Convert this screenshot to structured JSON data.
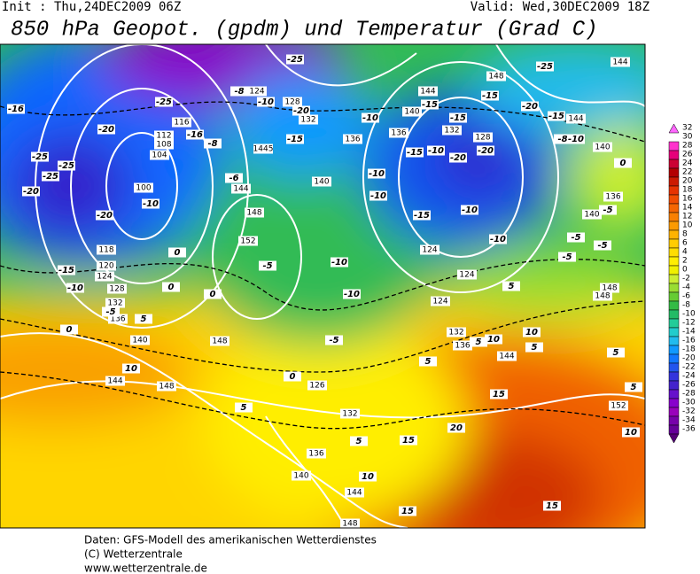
{
  "header": {
    "init": "Init : Thu,24DEC2009 06Z",
    "valid": "Valid: Wed,30DEC2009 18Z",
    "title": "850 hPa Geopot. (gpdm) und Temperatur (Grad C)"
  },
  "map": {
    "geopotential_labels": [
      "124",
      "128",
      "132",
      "116",
      "112",
      "108",
      "104",
      "100",
      "1445",
      "144",
      "148",
      "152",
      "140",
      "136",
      "136",
      "140",
      "144",
      "148",
      "144",
      "132",
      "128",
      "144",
      "140",
      "136",
      "140",
      "148",
      "148",
      "124",
      "124",
      "124",
      "132",
      "136",
      "144",
      "152",
      "118",
      "120",
      "124",
      "128",
      "132",
      "136",
      "140",
      "144",
      "148",
      "148",
      "126",
      "132",
      "136",
      "140",
      "144",
      "148"
    ],
    "temperature_labels": [
      "-16",
      "-25",
      "-16",
      "-8",
      "-10",
      "-8",
      "-25",
      "-20",
      "-15",
      "-10",
      "-15",
      "-15",
      "-15",
      "-20",
      "-25",
      "-15",
      "-8",
      "-10",
      "-15",
      "-10",
      "-20",
      "-20",
      "-10",
      "-10",
      "-15",
      "-10",
      "-10",
      "-5",
      "-5",
      "-5",
      "0",
      "-5",
      "-20",
      "-25",
      "-25",
      "-20",
      "-25",
      "-20",
      "-10",
      "-15",
      "-10",
      "-5",
      "0",
      "-6",
      "0",
      "0",
      "0",
      "-5",
      "-10",
      "-10",
      "-5",
      "0",
      "5",
      "5",
      "10",
      "10",
      "5",
      "5",
      "15",
      "20",
      "15",
      "10",
      "15",
      "5",
      "5",
      "10",
      "5",
      "10",
      "5",
      "5",
      "15"
    ]
  },
  "colorbar": {
    "labels": [
      32,
      30,
      28,
      26,
      24,
      22,
      20,
      18,
      16,
      14,
      12,
      10,
      8,
      6,
      4,
      2,
      0,
      -2,
      -4,
      -6,
      -8,
      -10,
      -12,
      -14,
      -16,
      -18,
      -20,
      -22,
      -24,
      -26,
      -28,
      -30,
      -32,
      -34,
      -36
    ],
    "colors": [
      "#ff66ff",
      "#ff33cc",
      "#e6007a",
      "#cc0033",
      "#b30000",
      "#cc1a00",
      "#e63300",
      "#f04d00",
      "#f56600",
      "#f98000",
      "#fc9a00",
      "#ffb300",
      "#ffcc00",
      "#ffdd00",
      "#ffee00",
      "#f0f000",
      "#ccee33",
      "#99dd33",
      "#66cc33",
      "#33bb44",
      "#22bb66",
      "#22cc99",
      "#22cccc",
      "#22bbee",
      "#1199ff",
      "#1177ff",
      "#2255ee",
      "#3333dd",
      "#4422cc",
      "#6611cc",
      "#8800cc",
      "#9900bb",
      "#7700aa",
      "#660099",
      "#550077"
    ]
  },
  "footer": {
    "line1": "Daten: GFS-Modell des amerikanischen Wetterdienstes",
    "line2": "(C) Wetterzentrale",
    "line3": "www.wetterzentrale.de"
  }
}
